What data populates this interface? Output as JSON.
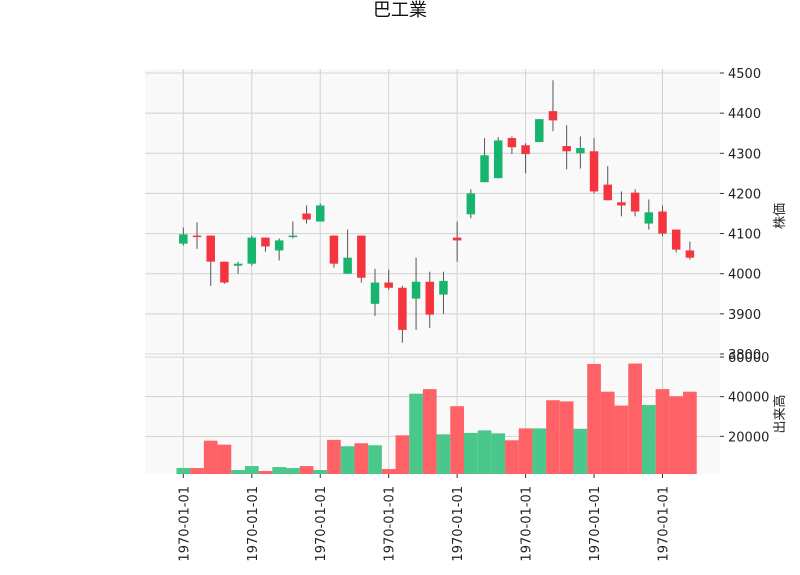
{
  "colors": {
    "up": "#16b46c",
    "down": "#f4353f",
    "vol_up": "#4ac78a",
    "vol_down": "#fe6166",
    "wick": "#555555",
    "plot_bg": "#f9f9f9",
    "grid": "#d2d2d2"
  },
  "chart_data": {
    "type": "candlestick",
    "title": "巴工業",
    "price_panel": {
      "ylabel": "株価",
      "ylim": [
        3800,
        4510
      ],
      "yticks": [
        3800,
        3900,
        4000,
        4100,
        4200,
        4300,
        4400,
        4500
      ],
      "grid": true
    },
    "volume_panel": {
      "ylabel": "出来高",
      "ylim": [
        1000,
        60000
      ],
      "yticks": [
        20000,
        40000,
        60000
      ],
      "grid": true
    },
    "x_tick_labels": [
      "1970-01-01",
      "1970-01-01",
      "1970-01-01",
      "1970-01-01",
      "1970-01-01",
      "1970-01-01",
      "1970-01-01",
      "1970-01-01"
    ],
    "x_tick_positions": [
      0,
      5,
      10,
      15,
      20,
      25,
      30,
      35
    ],
    "x_range": [
      -2.8,
      39.2
    ],
    "candles": [
      {
        "open": 4075,
        "high": 4115,
        "low": 4070,
        "close": 4098,
        "volume": 4000
      },
      {
        "open": 4095,
        "high": 4128,
        "low": 4062,
        "close": 4093,
        "volume": 4000
      },
      {
        "open": 4095,
        "high": 4095,
        "low": 3970,
        "close": 4030,
        "volume": 17800
      },
      {
        "open": 4030,
        "high": 4030,
        "low": 3975,
        "close": 3978,
        "volume": 15800
      },
      {
        "open": 4020,
        "high": 4030,
        "low": 4000,
        "close": 4025,
        "volume": 3000
      },
      {
        "open": 4025,
        "high": 4095,
        "low": 4020,
        "close": 4090,
        "volume": 5000
      },
      {
        "open": 4090,
        "high": 4090,
        "low": 4055,
        "close": 4068,
        "volume": 2500
      },
      {
        "open": 4058,
        "high": 4088,
        "low": 4033,
        "close": 4083,
        "volume": 4500
      },
      {
        "open": 4092,
        "high": 4130,
        "low": 4088,
        "close": 4095,
        "volume": 4000
      },
      {
        "open": 4150,
        "high": 4170,
        "low": 4125,
        "close": 4135,
        "volume": 5000
      },
      {
        "open": 4130,
        "high": 4175,
        "low": 4130,
        "close": 4170,
        "volume": 3000
      },
      {
        "open": 4095,
        "high": 4095,
        "low": 4015,
        "close": 4025,
        "volume": 18200
      },
      {
        "open": 4000,
        "high": 4110,
        "low": 4000,
        "close": 4040,
        "volume": 15000
      },
      {
        "open": 4095,
        "high": 4095,
        "low": 3978,
        "close": 3990,
        "volume": 16500
      },
      {
        "open": 3925,
        "high": 4012,
        "low": 3895,
        "close": 3978,
        "volume": 15500
      },
      {
        "open": 3978,
        "high": 4010,
        "low": 3960,
        "close": 3965,
        "volume": 3500
      },
      {
        "open": 3965,
        "high": 3970,
        "low": 3828,
        "close": 3860,
        "volume": 20500
      },
      {
        "open": 3938,
        "high": 4040,
        "low": 3860,
        "close": 3980,
        "volume": 41500
      },
      {
        "open": 3980,
        "high": 4005,
        "low": 3865,
        "close": 3898,
        "volume": 43800
      },
      {
        "open": 3948,
        "high": 4005,
        "low": 3900,
        "close": 3982,
        "volume": 21000
      },
      {
        "open": 4090,
        "high": 4130,
        "low": 4030,
        "close": 4083,
        "volume": 35200
      },
      {
        "open": 4148,
        "high": 4210,
        "low": 4138,
        "close": 4200,
        "volume": 21700
      },
      {
        "open": 4228,
        "high": 4338,
        "low": 4228,
        "close": 4295,
        "volume": 23000
      },
      {
        "open": 4238,
        "high": 4340,
        "low": 4238,
        "close": 4332,
        "volume": 21500
      },
      {
        "open": 4338,
        "high": 4342,
        "low": 4298,
        "close": 4315,
        "volume": 18000
      },
      {
        "open": 4320,
        "high": 4325,
        "low": 4250,
        "close": 4298,
        "volume": 24000
      },
      {
        "open": 4328,
        "high": 4385,
        "low": 4328,
        "close": 4385,
        "volume": 24000
      },
      {
        "open": 4405,
        "high": 4482,
        "low": 4355,
        "close": 4382,
        "volume": 38200
      },
      {
        "open": 4318,
        "high": 4370,
        "low": 4260,
        "close": 4305,
        "volume": 37600
      },
      {
        "open": 4300,
        "high": 4342,
        "low": 4262,
        "close": 4313,
        "volume": 23800
      },
      {
        "open": 4305,
        "high": 4338,
        "low": 4200,
        "close": 4205,
        "volume": 56500
      },
      {
        "open": 4222,
        "high": 4268,
        "low": 4183,
        "close": 4183,
        "volume": 42500
      },
      {
        "open": 4178,
        "high": 4205,
        "low": 4143,
        "close": 4170,
        "volume": 35500
      },
      {
        "open": 4202,
        "high": 4210,
        "low": 4143,
        "close": 4155,
        "volume": 56700
      },
      {
        "open": 4125,
        "high": 4185,
        "low": 4110,
        "close": 4153,
        "volume": 35800
      },
      {
        "open": 4155,
        "high": 4170,
        "low": 4093,
        "close": 4100,
        "volume": 43800
      },
      {
        "open": 4110,
        "high": 4110,
        "low": 4053,
        "close": 4060,
        "volume": 40200
      },
      {
        "open": 4058,
        "high": 4080,
        "low": 4035,
        "close": 4040,
        "volume": 42500
      }
    ]
  }
}
